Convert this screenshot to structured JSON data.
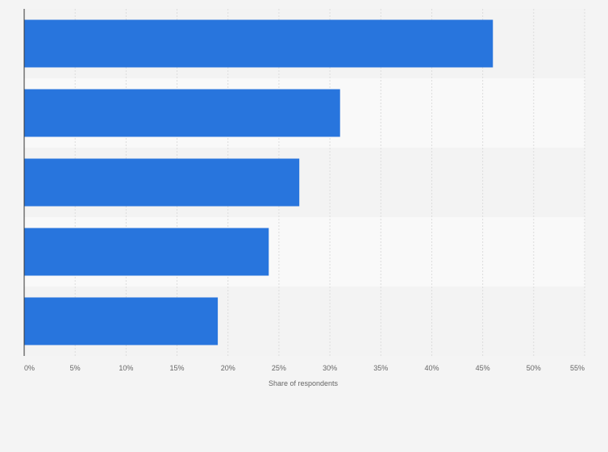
{
  "chart_data": {
    "type": "bar",
    "orientation": "horizontal",
    "categories": [
      "",
      "",
      "",
      "",
      ""
    ],
    "values": [
      46,
      31,
      27,
      24,
      19
    ],
    "xlabel": "Share of respondents",
    "ylabel": "",
    "xlim": [
      0,
      55
    ],
    "ticks": [
      "0%",
      "5%",
      "10%",
      "15%",
      "20%",
      "25%",
      "30%",
      "35%",
      "40%",
      "45%",
      "50%",
      "55%"
    ],
    "grid": true,
    "legend": "none",
    "colors": {
      "bar": "#2875dd",
      "band_dark": "#f3f3f3",
      "band_light": "#f9f9f9",
      "grid": "#dcdcdc",
      "axis": "#333333",
      "text": "#666666"
    }
  }
}
